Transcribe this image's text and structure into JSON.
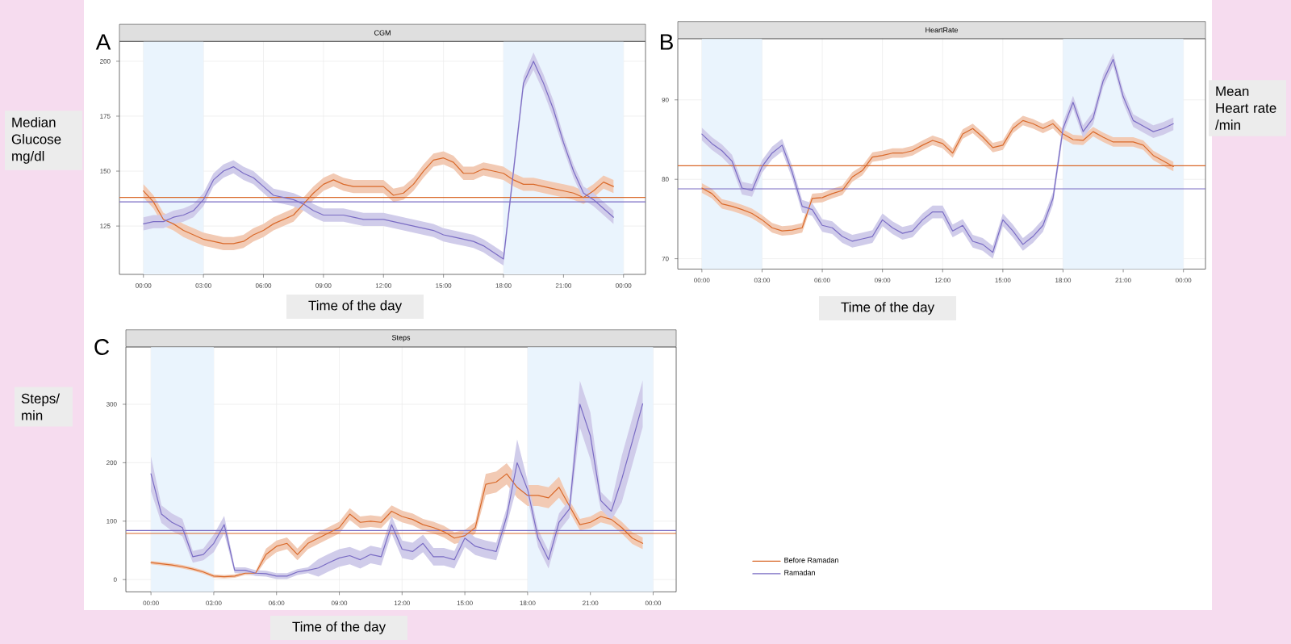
{
  "chart_data": [
    {
      "type": "line",
      "title": "CGM",
      "xlabel": "Time of the day",
      "ylabel": "Median Glucose mg/dl",
      "annotations": [
        "A"
      ],
      "grid": true,
      "x": [
        0,
        0.5,
        1,
        1.5,
        2,
        2.5,
        3,
        3.5,
        4,
        4.5,
        5,
        5.5,
        6,
        6.5,
        7,
        7.5,
        8,
        8.5,
        9,
        9.5,
        10,
        10.5,
        11,
        11.5,
        12,
        12.5,
        13,
        13.5,
        14,
        14.5,
        15,
        15.5,
        16,
        16.5,
        17,
        17.5,
        18,
        18.5,
        19,
        19.5,
        20,
        20.5,
        21,
        21.5,
        22,
        22.5,
        23,
        23.5
      ],
      "xlim": [
        -1.2,
        25.1
      ],
      "xticks": [
        {
          "value": 0,
          "label": "00:00"
        },
        {
          "value": 3,
          "label": "03:00"
        },
        {
          "value": 6,
          "label": "06:00"
        },
        {
          "value": 9,
          "label": "09:00"
        },
        {
          "value": 12,
          "label": "12:00"
        },
        {
          "value": 15,
          "label": "15:00"
        },
        {
          "value": 18,
          "label": "18:00"
        },
        {
          "value": 21,
          "label": "21:00"
        },
        {
          "value": 24,
          "label": "00:00"
        }
      ],
      "ylim": [
        103,
        209
      ],
      "yticks": [
        125,
        150,
        175,
        200
      ],
      "bands": [
        {
          "axis": "x",
          "from": 0,
          "to": 3,
          "color": "#eaf4fd"
        },
        {
          "axis": "x",
          "from": 18,
          "to": 24,
          "color": "#eaf4fd"
        }
      ],
      "ref_lines": [
        {
          "axis": "y",
          "value": 138,
          "color": "#d9692a"
        },
        {
          "axis": "y",
          "value": 136,
          "color": "#7a6cc4"
        }
      ],
      "series": [
        {
          "color": "#d9692a",
          "values": [
            141,
            136,
            128,
            126,
            123,
            121,
            119,
            118,
            117,
            117,
            118,
            121,
            123,
            126,
            128,
            130,
            135,
            140,
            144,
            146,
            144,
            143,
            143,
            143,
            143,
            139,
            140,
            144,
            150,
            155,
            156,
            154,
            149,
            149,
            151,
            150,
            149,
            146,
            144,
            144,
            143,
            142,
            141,
            140,
            138,
            141,
            145,
            143
          ],
          "lower": [
            138,
            133,
            125,
            123,
            120,
            118,
            116,
            115,
            114,
            114,
            115,
            118,
            120,
            123,
            125,
            127,
            132,
            137,
            141,
            143,
            141,
            140,
            140,
            140,
            140,
            136,
            137,
            141,
            147,
            152,
            153,
            151,
            146,
            146,
            148,
            147,
            146,
            143,
            141,
            141,
            140,
            139,
            138,
            137,
            135,
            138,
            142,
            140
          ],
          "upper": [
            144,
            139,
            131,
            129,
            126,
            124,
            122,
            121,
            120,
            120,
            121,
            124,
            126,
            129,
            131,
            133,
            138,
            143,
            147,
            149,
            147,
            146,
            146,
            146,
            146,
            142,
            143,
            147,
            153,
            158,
            159,
            157,
            152,
            152,
            154,
            153,
            152,
            149,
            147,
            147,
            146,
            145,
            144,
            143,
            141,
            144,
            148,
            146
          ]
        },
        {
          "color": "#7a6cc4",
          "values": [
            126,
            127,
            127,
            129,
            130,
            132,
            137,
            146,
            150,
            152,
            149,
            147,
            143,
            139,
            138,
            137,
            135,
            132,
            130,
            130,
            130,
            129,
            128,
            128,
            128,
            127,
            126,
            125,
            124,
            123,
            121,
            120,
            119,
            118,
            116,
            113,
            110,
            150,
            190,
            200,
            190,
            178,
            163,
            150,
            140,
            137,
            133,
            129
          ],
          "lower": [
            123,
            124,
            124,
            126,
            127,
            129,
            134,
            143,
            147,
            149,
            146,
            144,
            140,
            136,
            135,
            134,
            132,
            129,
            127,
            127,
            127,
            126,
            125,
            125,
            125,
            124,
            123,
            122,
            121,
            120,
            118,
            117,
            116,
            115,
            113,
            110,
            107,
            147,
            187,
            196,
            186,
            174,
            160,
            147,
            137,
            134,
            130,
            126
          ],
          "upper": [
            129,
            130,
            130,
            132,
            133,
            135,
            140,
            149,
            153,
            155,
            152,
            150,
            146,
            142,
            141,
            140,
            138,
            135,
            133,
            133,
            133,
            132,
            131,
            131,
            131,
            130,
            129,
            128,
            127,
            126,
            124,
            123,
            122,
            121,
            119,
            116,
            113,
            153,
            193,
            204,
            194,
            182,
            166,
            153,
            143,
            140,
            136,
            132
          ]
        }
      ]
    },
    {
      "type": "line",
      "title": "HeartRate",
      "xlabel": "Time of the day",
      "ylabel": "Mean Heart rate /min",
      "annotations": [
        "B"
      ],
      "grid": true,
      "x": [
        0,
        0.5,
        1,
        1.5,
        2,
        2.5,
        3,
        3.5,
        4,
        4.5,
        5,
        5.5,
        6,
        6.5,
        7,
        7.5,
        8,
        8.5,
        9,
        9.5,
        10,
        10.5,
        11,
        11.5,
        12,
        12.5,
        13,
        13.5,
        14,
        14.5,
        15,
        15.5,
        16,
        16.5,
        17,
        17.5,
        18,
        18.5,
        19,
        19.5,
        20,
        20.5,
        21,
        21.5,
        22,
        22.5,
        23,
        23.5
      ],
      "xlim": [
        -1.2,
        25.1
      ],
      "xticks": [
        {
          "value": 0,
          "label": "00:00"
        },
        {
          "value": 3,
          "label": "03:00"
        },
        {
          "value": 6,
          "label": "06:00"
        },
        {
          "value": 9,
          "label": "09:00"
        },
        {
          "value": 12,
          "label": "12:00"
        },
        {
          "value": 15,
          "label": "15:00"
        },
        {
          "value": 18,
          "label": "18:00"
        },
        {
          "value": 21,
          "label": "21:00"
        },
        {
          "value": 24,
          "label": "00:00"
        }
      ],
      "ylim": [
        68.7,
        97.7
      ],
      "yticks": [
        70,
        80,
        90
      ],
      "bands": [
        {
          "axis": "x",
          "from": 0,
          "to": 3,
          "color": "#eaf4fd"
        },
        {
          "axis": "x",
          "from": 18,
          "to": 24,
          "color": "#eaf4fd"
        }
      ],
      "ref_lines": [
        {
          "axis": "y",
          "value": 81.7,
          "color": "#d9692a"
        },
        {
          "axis": "y",
          "value": 78.8,
          "color": "#7a6cc4"
        }
      ],
      "series": [
        {
          "color": "#d9692a",
          "values": [
            78.9,
            78.2,
            76.9,
            76.6,
            76.2,
            75.7,
            74.9,
            73.9,
            73.5,
            73.6,
            73.9,
            77.6,
            77.7,
            78.2,
            78.6,
            80.3,
            81.1,
            82.8,
            83.0,
            83.3,
            83.3,
            83.6,
            84.3,
            84.9,
            84.5,
            83.3,
            85.7,
            86.4,
            85.3,
            84.0,
            84.3,
            86.4,
            87.4,
            87.0,
            86.4,
            87.0,
            85.7,
            85.0,
            84.9,
            86.0,
            85.3,
            84.7,
            84.7,
            84.7,
            84.3,
            83.0,
            82.3,
            81.6
          ],
          "lower": [
            78.3,
            77.6,
            76.3,
            76.0,
            75.6,
            75.1,
            74.3,
            73.3,
            72.9,
            73.0,
            73.3,
            77.0,
            77.1,
            77.6,
            78.0,
            79.7,
            80.5,
            82.2,
            82.4,
            82.7,
            82.7,
            83.0,
            83.7,
            84.3,
            83.9,
            82.7,
            85.1,
            85.8,
            84.7,
            83.4,
            83.7,
            85.8,
            86.8,
            86.4,
            85.8,
            86.4,
            85.1,
            84.4,
            84.3,
            85.4,
            84.7,
            84.1,
            84.1,
            84.1,
            83.7,
            82.4,
            81.7,
            81.0
          ],
          "upper": [
            79.5,
            78.8,
            77.5,
            77.2,
            76.8,
            76.3,
            75.5,
            74.5,
            74.1,
            74.2,
            74.5,
            78.2,
            78.3,
            78.8,
            79.2,
            80.9,
            81.7,
            83.4,
            83.6,
            83.9,
            83.9,
            84.2,
            84.9,
            85.5,
            85.1,
            83.9,
            86.3,
            87.0,
            85.9,
            84.6,
            84.9,
            87.0,
            88.0,
            87.6,
            87.0,
            87.6,
            86.3,
            85.6,
            85.5,
            86.6,
            85.9,
            85.3,
            85.3,
            85.3,
            84.9,
            83.6,
            82.9,
            82.2
          ]
        },
        {
          "color": "#7a6cc4",
          "values": [
            85.7,
            84.5,
            83.6,
            82.3,
            78.9,
            78.6,
            81.6,
            83.3,
            84.3,
            80.9,
            76.6,
            76.2,
            74.2,
            73.9,
            72.8,
            72.2,
            72.5,
            72.8,
            74.9,
            73.9,
            73.2,
            73.5,
            74.9,
            75.9,
            75.9,
            73.5,
            74.2,
            72.2,
            71.8,
            70.8,
            74.9,
            73.5,
            71.8,
            72.8,
            74.2,
            77.6,
            86.4,
            89.7,
            86.0,
            87.7,
            92.4,
            95.1,
            90.4,
            87.4,
            86.7,
            86.0,
            86.4,
            87.0
          ],
          "lower": [
            84.9,
            83.7,
            82.8,
            81.5,
            78.1,
            77.8,
            80.8,
            82.5,
            83.5,
            80.1,
            75.8,
            75.4,
            73.4,
            73.1,
            72.0,
            71.4,
            71.7,
            72.0,
            74.1,
            73.1,
            72.4,
            72.7,
            74.1,
            75.1,
            75.1,
            72.7,
            73.4,
            71.4,
            71.0,
            70.0,
            74.1,
            72.7,
            71.0,
            72.0,
            73.4,
            76.8,
            85.6,
            88.9,
            85.2,
            86.9,
            91.6,
            94.3,
            89.6,
            86.6,
            85.9,
            85.2,
            85.6,
            86.2
          ],
          "upper": [
            86.5,
            85.3,
            84.4,
            83.1,
            79.7,
            79.4,
            82.4,
            84.1,
            85.1,
            81.7,
            77.4,
            77.0,
            75.0,
            74.7,
            73.6,
            73.0,
            73.3,
            73.6,
            75.7,
            74.7,
            74.0,
            74.3,
            75.7,
            76.7,
            76.7,
            74.3,
            75.0,
            73.0,
            72.6,
            71.6,
            75.7,
            74.3,
            72.6,
            73.6,
            75.0,
            78.4,
            87.2,
            90.5,
            86.8,
            88.5,
            93.2,
            95.9,
            91.2,
            88.2,
            87.5,
            86.8,
            87.2,
            87.8
          ]
        }
      ]
    },
    {
      "type": "line",
      "title": "Steps",
      "xlabel": "Time of the day",
      "ylabel": "Steps/ min",
      "annotations": [
        "C"
      ],
      "grid": true,
      "legend": "right",
      "x": [
        0,
        0.5,
        1,
        1.5,
        2,
        2.5,
        3,
        3.5,
        4,
        4.5,
        5,
        5.5,
        6,
        6.5,
        7,
        7.5,
        8,
        8.5,
        9,
        9.5,
        10,
        10.5,
        11,
        11.5,
        12,
        12.5,
        13,
        13.5,
        14,
        14.5,
        15,
        15.5,
        16,
        16.5,
        17,
        17.5,
        18,
        18.5,
        19,
        19.5,
        20,
        20.5,
        21,
        21.5,
        22,
        22.5,
        23,
        23.5
      ],
      "xlim": [
        -1.2,
        25.1
      ],
      "xticks": [
        {
          "value": 0,
          "label": "00:00"
        },
        {
          "value": 3,
          "label": "03:00"
        },
        {
          "value": 6,
          "label": "06:00"
        },
        {
          "value": 9,
          "label": "09:00"
        },
        {
          "value": 12,
          "label": "12:00"
        },
        {
          "value": 15,
          "label": "15:00"
        },
        {
          "value": 18,
          "label": "18:00"
        },
        {
          "value": 21,
          "label": "21:00"
        },
        {
          "value": 24,
          "label": "00:00"
        }
      ],
      "ylim": [
        -21,
        398
      ],
      "yticks": [
        0,
        100,
        200,
        300
      ],
      "bands": [
        {
          "axis": "x",
          "from": 0,
          "to": 3,
          "color": "#eaf4fd"
        },
        {
          "axis": "x",
          "from": 18,
          "to": 24,
          "color": "#eaf4fd"
        }
      ],
      "ref_lines": [
        {
          "axis": "y",
          "value": 79,
          "color": "#d9692a"
        },
        {
          "axis": "y",
          "value": 84,
          "color": "#7a6cc4"
        }
      ],
      "series": [
        {
          "name": "Before Ramadan",
          "color": "#d9692a",
          "values": [
            29,
            27,
            25,
            22,
            18,
            13,
            6,
            5,
            6,
            11,
            11,
            43,
            57,
            62,
            43,
            62,
            71,
            80,
            89,
            112,
            98,
            100,
            98,
            117,
            108,
            103,
            94,
            89,
            82,
            71,
            75,
            89,
            163,
            167,
            181,
            158,
            144,
            144,
            140,
            158,
            126,
            94,
            98,
            108,
            103,
            89,
            71,
            62
          ],
          "lower": [
            26,
            24,
            22,
            19,
            15,
            10,
            3,
            2,
            3,
            8,
            8,
            33,
            47,
            52,
            33,
            52,
            61,
            70,
            79,
            102,
            88,
            90,
            88,
            107,
            98,
            93,
            84,
            79,
            72,
            61,
            65,
            79,
            145,
            149,
            163,
            140,
            126,
            126,
            122,
            140,
            116,
            84,
            88,
            98,
            93,
            79,
            61,
            52
          ],
          "upper": [
            32,
            30,
            28,
            25,
            21,
            16,
            9,
            8,
            9,
            14,
            14,
            53,
            67,
            72,
            53,
            72,
            81,
            90,
            99,
            122,
            108,
            110,
            108,
            127,
            118,
            113,
            104,
            99,
            92,
            81,
            85,
            99,
            181,
            185,
            199,
            176,
            162,
            162,
            158,
            176,
            136,
            104,
            108,
            118,
            113,
            99,
            81,
            72
          ]
        },
        {
          "name": "Ramadan",
          "color": "#7a6cc4",
          "values": [
            181,
            112,
            98,
            89,
            39,
            43,
            62,
            94,
            16,
            16,
            11,
            10,
            6,
            6,
            13,
            16,
            20,
            29,
            37,
            41,
            34,
            43,
            39,
            94,
            52,
            48,
            62,
            39,
            39,
            34,
            71,
            57,
            52,
            48,
            108,
            200,
            154,
            71,
            34,
            98,
            121,
            300,
            246,
            135,
            117,
            172,
            236,
            301
          ],
          "lower": [
            151,
            97,
            83,
            74,
            29,
            33,
            47,
            79,
            11,
            11,
            6,
            5,
            1,
            1,
            8,
            11,
            5,
            14,
            22,
            26,
            19,
            28,
            24,
            79,
            37,
            33,
            47,
            24,
            24,
            19,
            56,
            42,
            37,
            33,
            93,
            160,
            139,
            56,
            19,
            83,
            106,
            260,
            206,
            120,
            102,
            132,
            196,
            261
          ],
          "upper": [
            211,
            127,
            113,
            104,
            49,
            53,
            77,
            109,
            21,
            21,
            16,
            15,
            11,
            11,
            18,
            21,
            35,
            44,
            52,
            56,
            49,
            58,
            54,
            109,
            67,
            63,
            77,
            54,
            54,
            49,
            86,
            72,
            67,
            63,
            123,
            240,
            169,
            86,
            49,
            113,
            136,
            340,
            286,
            150,
            132,
            212,
            276,
            341
          ]
        }
      ]
    }
  ]
}
